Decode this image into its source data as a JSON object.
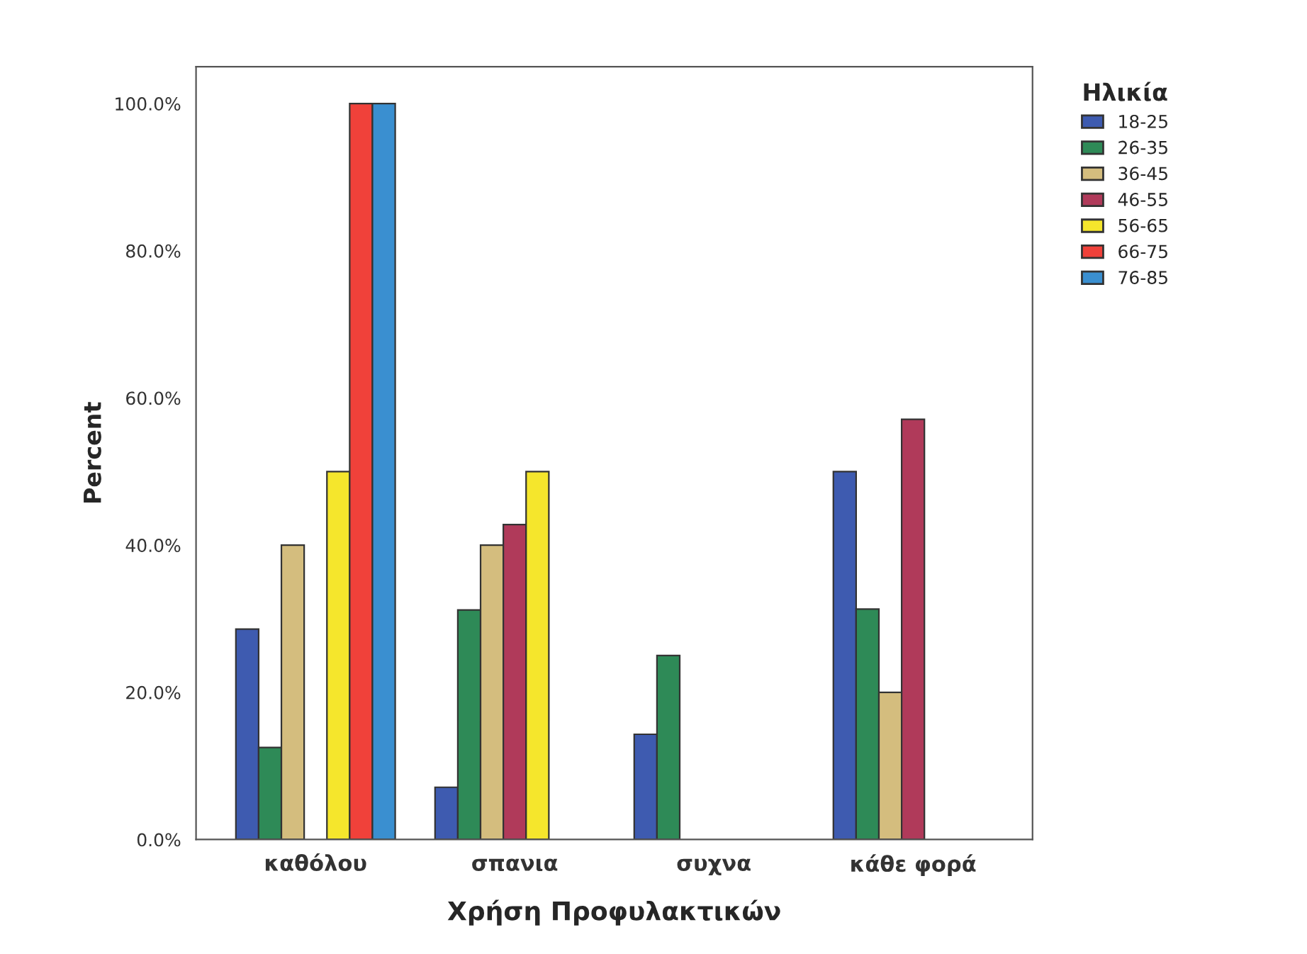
{
  "chart_data": {
    "type": "bar",
    "xlabel": "Χρήση Προφυλακτικών",
    "ylabel": "Percent",
    "legend_title": "Ηλικία",
    "legend": "top right",
    "grid": false,
    "categories": [
      "καθόλου",
      "σπανια",
      "συχνα",
      "κάθε φορά"
    ],
    "ylim": [
      0,
      105
    ],
    "yticks": [
      {
        "value": 0,
        "label": "0.0%"
      },
      {
        "value": 20,
        "label": "20.0%"
      },
      {
        "value": 40,
        "label": "40.0%"
      },
      {
        "value": 60,
        "label": "60.0%"
      },
      {
        "value": 80,
        "label": "80.0%"
      },
      {
        "value": 100,
        "label": "100.0%"
      }
    ],
    "series": [
      {
        "name": "18-25",
        "color": "#3e5bb0",
        "values": [
          28.6,
          7.1,
          14.3,
          50
        ]
      },
      {
        "name": "26-35",
        "color": "#2e8a57",
        "values": [
          12.5,
          31.2,
          25,
          31.3
        ]
      },
      {
        "name": "36-45",
        "color": "#d4bd7e",
        "values": [
          40,
          40,
          null,
          20
        ]
      },
      {
        "name": "46-55",
        "color": "#b03a5a",
        "values": [
          null,
          42.8,
          null,
          57.1
        ]
      },
      {
        "name": "56-65",
        "color": "#f5e62c",
        "values": [
          50,
          50,
          null,
          null
        ]
      },
      {
        "name": "66-75",
        "color": "#f0413a",
        "values": [
          100,
          null,
          null,
          null
        ]
      },
      {
        "name": "76-85",
        "color": "#3a8fd0",
        "values": [
          100,
          null,
          null,
          null
        ]
      }
    ]
  }
}
